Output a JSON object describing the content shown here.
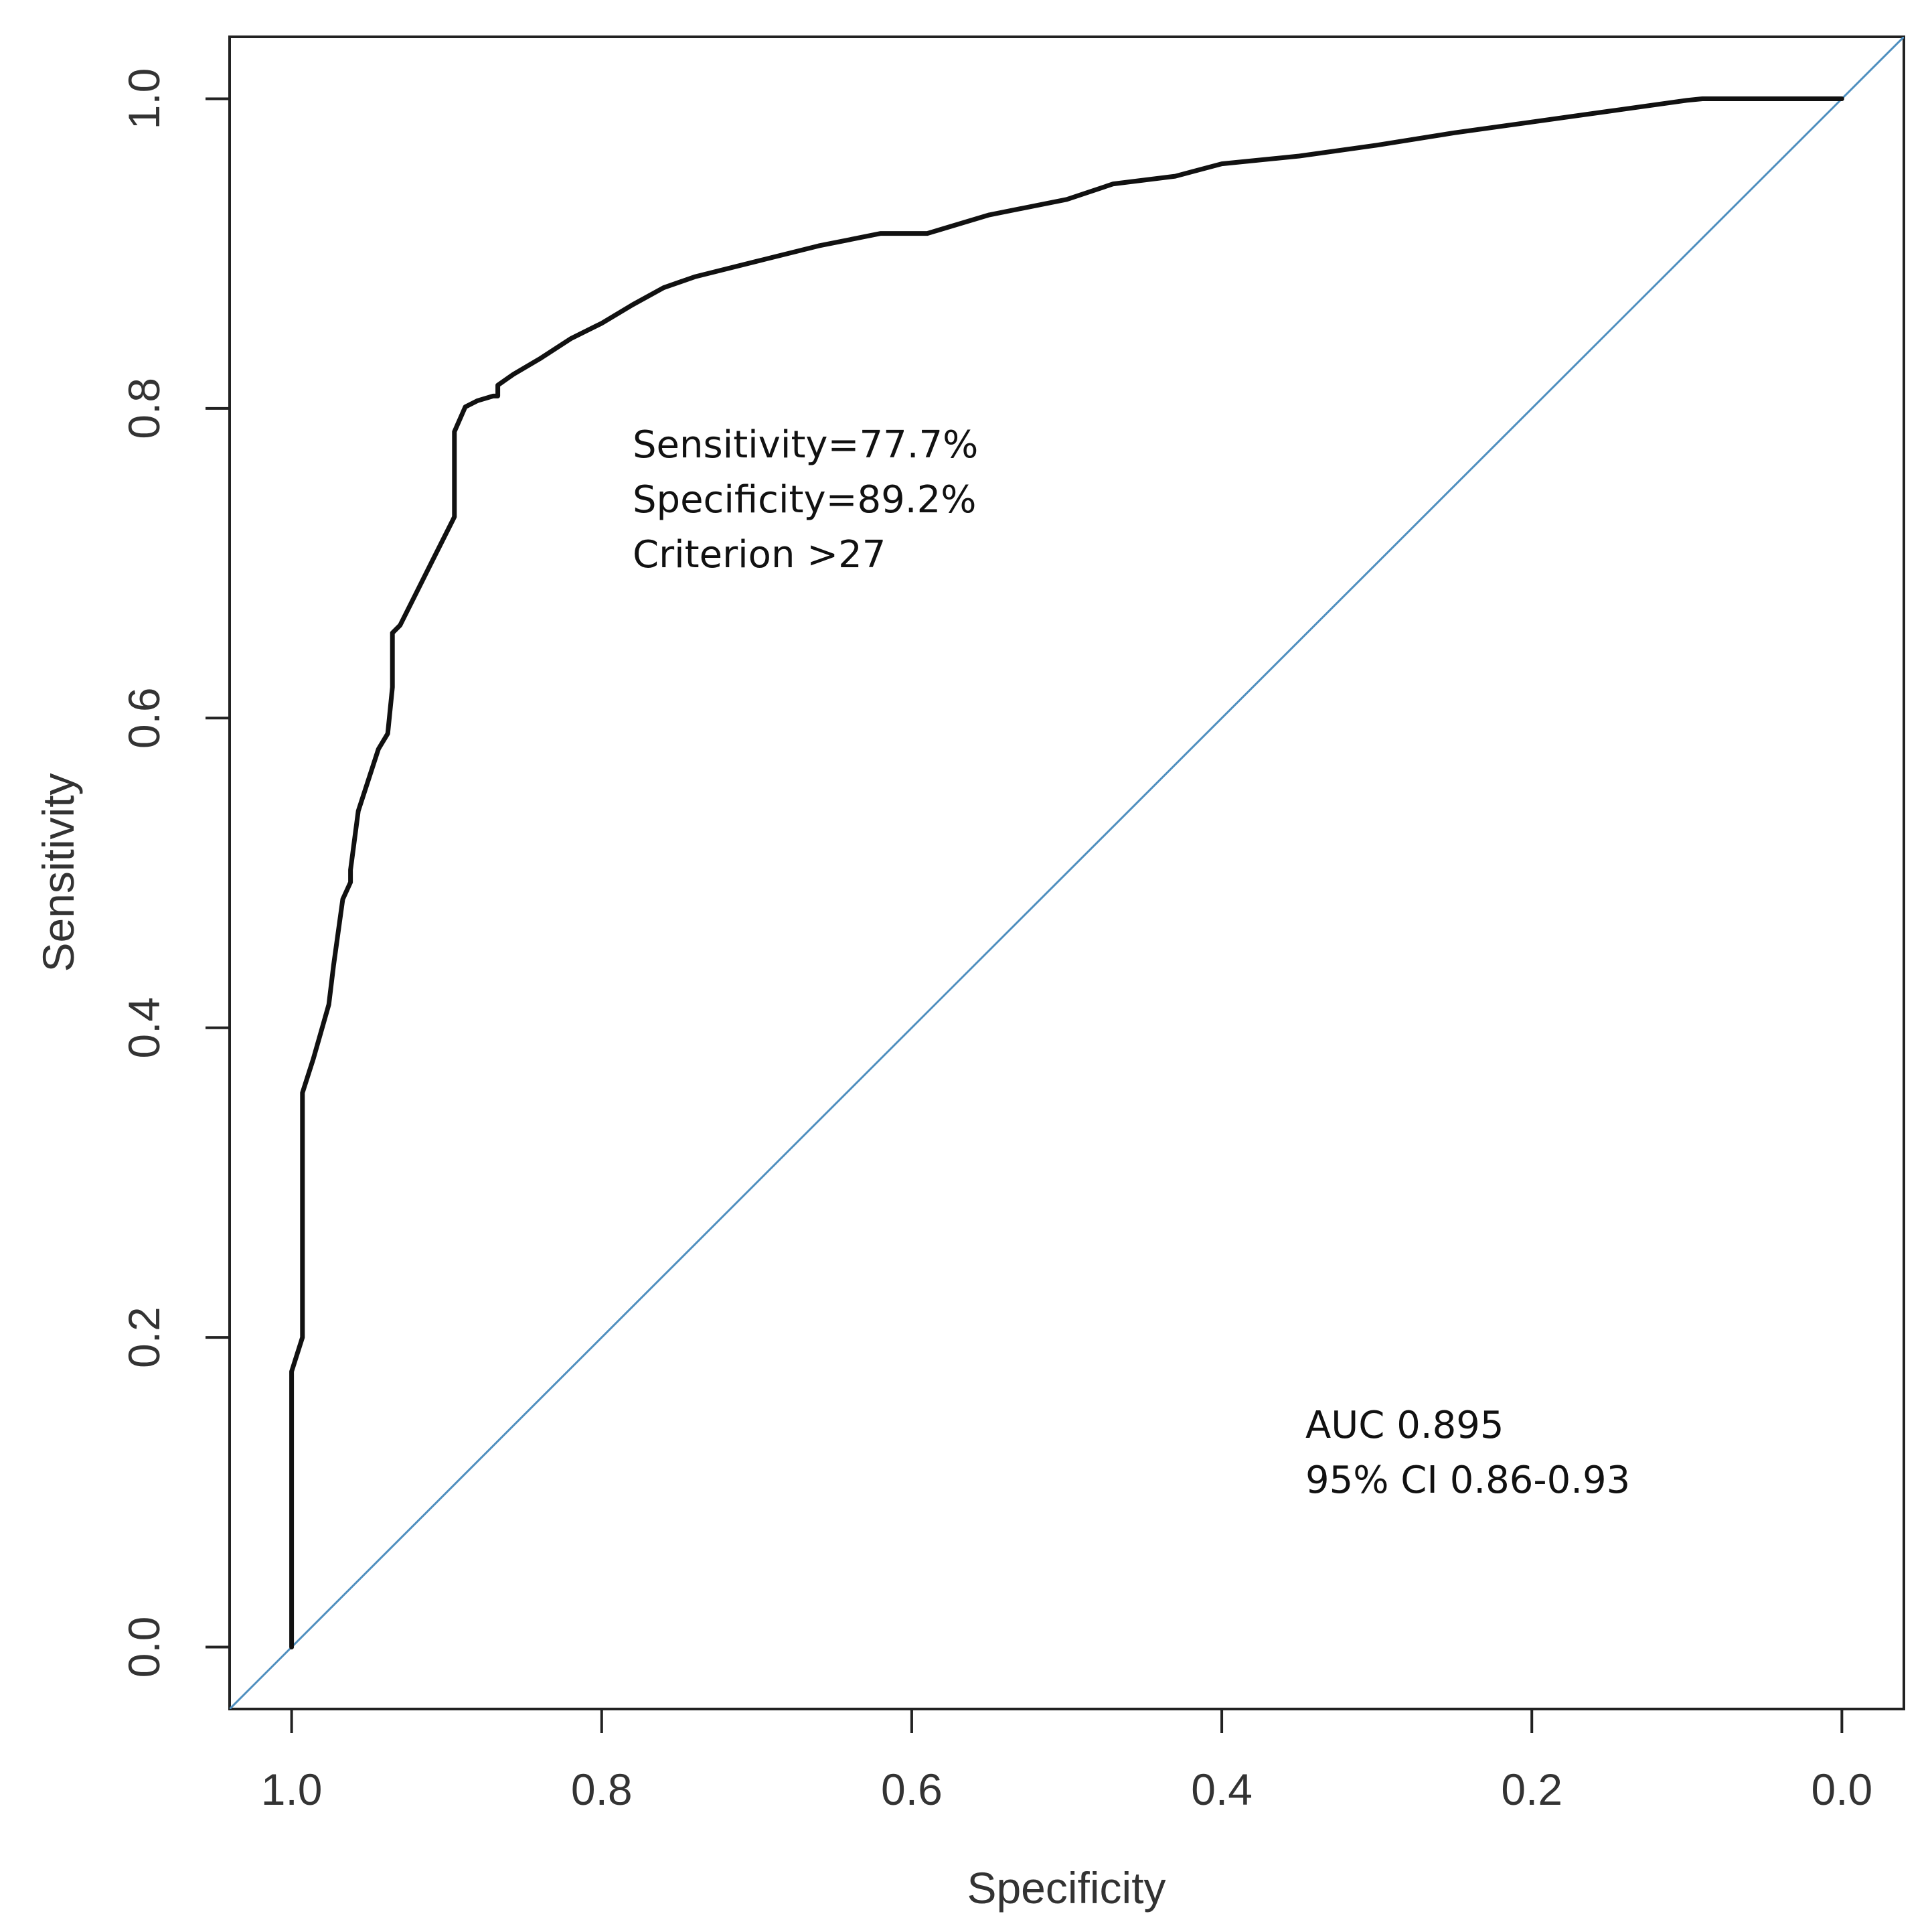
{
  "chart_data": {
    "type": "line",
    "title": "",
    "xlabel": "Specificity",
    "ylabel": "Sensitivity",
    "xlim": [
      1.04,
      -0.04
    ],
    "ylim": [
      -0.04,
      1.04
    ],
    "x_reversed": true,
    "xticks": [
      1.0,
      0.8,
      0.6,
      0.4,
      0.2,
      0.0
    ],
    "xtick_labels": [
      "1.0",
      "0.8",
      "0.6",
      "0.4",
      "0.2",
      "0.0"
    ],
    "yticks": [
      0.0,
      0.2,
      0.4,
      0.6,
      0.8,
      1.0
    ],
    "ytick_labels": [
      "0.0",
      "0.2",
      "0.4",
      "0.6",
      "0.8",
      "1.0"
    ],
    "grid": false,
    "series": [
      {
        "name": "ROC curve",
        "color": "#111111",
        "specificity": [
          1.0,
          1.0,
          0.993,
          0.993,
          0.993,
          0.986,
          0.976,
          0.973,
          0.967,
          0.962,
          0.962,
          0.957,
          0.944,
          0.938,
          0.935,
          0.935,
          0.93,
          0.91,
          0.896,
          0.895,
          0.895,
          0.888,
          0.88,
          0.87,
          0.867,
          0.867,
          0.857,
          0.84,
          0.82,
          0.8,
          0.78,
          0.76,
          0.74,
          0.7,
          0.66,
          0.62,
          0.59,
          0.55,
          0.5,
          0.47,
          0.43,
          0.4,
          0.35,
          0.3,
          0.25,
          0.2,
          0.15,
          0.1,
          0.09,
          0.0
        ],
        "sensitivity": [
          0.0,
          0.178,
          0.2,
          0.3,
          0.358,
          0.38,
          0.415,
          0.44,
          0.483,
          0.494,
          0.502,
          0.54,
          0.58,
          0.59,
          0.62,
          0.655,
          0.66,
          0.7,
          0.728,
          0.73,
          0.785,
          0.801,
          0.805,
          0.808,
          0.808,
          0.815,
          0.822,
          0.832,
          0.845,
          0.855,
          0.867,
          0.878,
          0.885,
          0.895,
          0.905,
          0.913,
          0.913,
          0.925,
          0.935,
          0.945,
          0.95,
          0.958,
          0.963,
          0.97,
          0.978,
          0.985,
          0.992,
          0.999,
          1.0,
          1.0
        ]
      },
      {
        "name": "Reference line",
        "color": "#4f8fbf",
        "specificity": [
          1.04,
          -0.04
        ],
        "sensitivity": [
          -0.04,
          1.04
        ]
      }
    ],
    "annotations": {
      "sensitivity": "Sensitivity=77.7%",
      "specificity": "Specificity=89.2%",
      "criterion": "Criterion >27",
      "auc": "AUC 0.895",
      "ci": "95% CI 0.86-0.93"
    }
  }
}
